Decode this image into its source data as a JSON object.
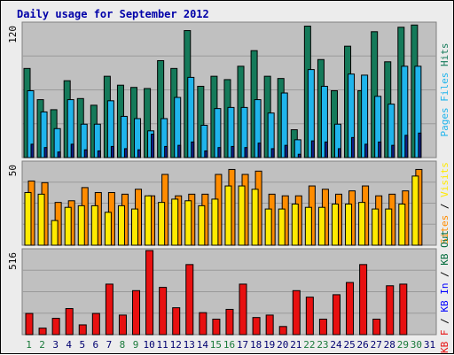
{
  "title": "Daily usage for September 2012",
  "colors": {
    "hits": "#157a5a",
    "files": "#1fb4ec",
    "pages": "#10208a",
    "visits": "#ffea00",
    "sites": "#ff8c00",
    "kb_in": "#0000ff",
    "kb_out": "#006b3a",
    "kb_f": "#e81010",
    "weekend_day": "#1a7a3a",
    "weekday": "#000070",
    "grid": "#9a9a9a",
    "panel_bg": "#c0c0c0"
  },
  "chart_data": [
    {
      "type": "bar",
      "name": "hits-files-pages",
      "ymax_label": "120",
      "ylim": [
        0,
        120
      ],
      "legend_labels": [
        "Pages",
        "Files",
        "Hits"
      ],
      "categories": [
        "1",
        "2",
        "3",
        "4",
        "5",
        "6",
        "7",
        "8",
        "9",
        "10",
        "11",
        "12",
        "13",
        "14",
        "15",
        "16",
        "17",
        "18",
        "19",
        "20",
        "21",
        "22",
        "23",
        "24",
        "25",
        "26",
        "27",
        "28",
        "29",
        "30",
        "31"
      ],
      "series": [
        {
          "name": "Hits",
          "values": [
            80,
            52,
            43,
            69,
            53,
            47,
            73,
            65,
            63,
            62,
            87,
            80,
            114,
            64,
            73,
            70,
            82,
            96,
            73,
            71,
            25,
            118,
            88,
            60,
            100,
            60,
            113,
            86,
            117,
            119,
            0
          ]
        },
        {
          "name": "Files",
          "values": [
            60,
            41,
            26,
            52,
            30,
            30,
            51,
            37,
            35,
            24,
            35,
            54,
            72,
            29,
            44,
            45,
            45,
            52,
            40,
            58,
            16,
            79,
            64,
            30,
            75,
            74,
            55,
            48,
            82,
            82,
            0
          ]
        },
        {
          "name": "Pages",
          "values": [
            12,
            9,
            5,
            12,
            7,
            6,
            10,
            8,
            7,
            21,
            10,
            11,
            14,
            6,
            9,
            10,
            9,
            13,
            8,
            11,
            3,
            15,
            14,
            8,
            18,
            12,
            14,
            11,
            20,
            22,
            0
          ]
        }
      ]
    },
    {
      "type": "bar",
      "name": "visits-sites",
      "ymax_label": "50",
      "ylim": [
        0,
        50
      ],
      "legend_labels": [
        "Sites",
        "/",
        "Visits"
      ],
      "categories": [
        "1",
        "2",
        "3",
        "4",
        "5",
        "6",
        "7",
        "8",
        "9",
        "10",
        "11",
        "12",
        "13",
        "14",
        "15",
        "16",
        "17",
        "18",
        "19",
        "20",
        "21",
        "22",
        "23",
        "24",
        "25",
        "26",
        "27",
        "28",
        "29",
        "30",
        "31"
      ],
      "series": [
        {
          "name": "Visits",
          "values": [
            32,
            31,
            15,
            23,
            24,
            24,
            20,
            24,
            22,
            30,
            26,
            28,
            27,
            24,
            28,
            36,
            36,
            34,
            22,
            22,
            25,
            23,
            23,
            25,
            25,
            26,
            22,
            22,
            25,
            42,
            0
          ]
        },
        {
          "name": "Sites",
          "values": [
            39,
            38,
            26,
            27,
            35,
            32,
            32,
            31,
            34,
            30,
            43,
            30,
            31,
            31,
            43,
            46,
            43,
            45,
            31,
            30,
            30,
            36,
            34,
            31,
            33,
            36,
            30,
            31,
            33,
            46,
            0
          ]
        }
      ]
    },
    {
      "type": "bar",
      "name": "kbytes",
      "ymax_label": "516",
      "ylim": [
        0,
        516
      ],
      "legend_labels": [
        "KB F",
        "/",
        "KB In",
        "/",
        "KB Out"
      ],
      "categories": [
        "1",
        "2",
        "3",
        "4",
        "5",
        "6",
        "7",
        "8",
        "9",
        "10",
        "11",
        "12",
        "13",
        "14",
        "15",
        "16",
        "17",
        "18",
        "19",
        "20",
        "21",
        "22",
        "23",
        "24",
        "25",
        "26",
        "27",
        "28",
        "29",
        "30",
        "31"
      ],
      "series": [
        {
          "name": "KB F",
          "values": [
            130,
            40,
            100,
            160,
            60,
            130,
            310,
            120,
            270,
            516,
            290,
            165,
            430,
            135,
            95,
            155,
            310,
            105,
            120,
            50,
            270,
            230,
            95,
            245,
            320,
            430,
            95,
            300,
            310,
            0,
            0
          ]
        }
      ]
    }
  ]
}
